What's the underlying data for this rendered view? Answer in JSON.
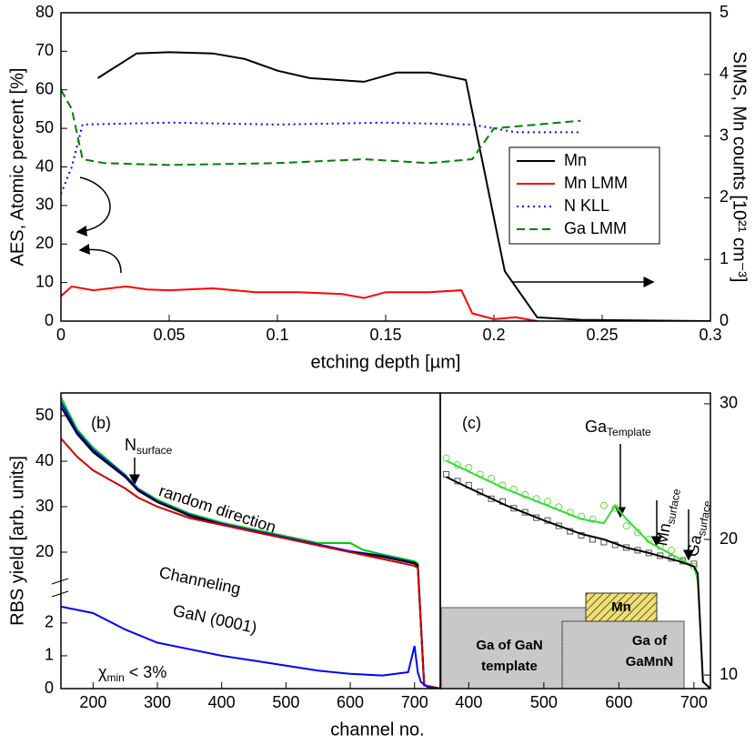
{
  "chart_data": [
    {
      "type": "line",
      "xlabel": "etching depth [µm]",
      "ylabel": "AES, Atomic percent [%]",
      "y2label": "SIMS, Mn counts [10²¹ cm⁻³]",
      "xlim": [
        0,
        0.3
      ],
      "xticks": [
        0,
        0.05,
        0.1,
        0.15,
        0.2,
        0.25,
        0.3
      ],
      "ylim": [
        0,
        80
      ],
      "yticks": [
        0,
        10,
        20,
        30,
        40,
        50,
        60,
        70,
        80
      ],
      "y2lim": [
        0,
        5
      ],
      "y2ticks": [
        0,
        1,
        2,
        3,
        4,
        5
      ],
      "legend": "right",
      "series": [
        {
          "name": "Mn",
          "color": "#000000",
          "dash": "solid",
          "axis": "y2",
          "x": [
            0.017,
            0.035,
            0.05,
            0.07,
            0.085,
            0.1,
            0.115,
            0.14,
            0.155,
            0.17,
            0.187,
            0.205,
            0.22,
            0.24,
            0.3
          ],
          "values": [
            3.94,
            4.34,
            4.36,
            4.34,
            4.25,
            4.06,
            3.94,
            3.88,
            4.03,
            4.03,
            3.91,
            0.81,
            0.06,
            0.02,
            0
          ]
        },
        {
          "name": "Mn LMM",
          "color": "#ff0000",
          "dash": "solid",
          "x": [
            0,
            0.005,
            0.015,
            0.03,
            0.04,
            0.05,
            0.07,
            0.09,
            0.11,
            0.13,
            0.14,
            0.15,
            0.17,
            0.185,
            0.19,
            0.2,
            0.21,
            0.22
          ],
          "values": [
            6.5,
            9,
            8,
            9,
            8.2,
            8,
            8.5,
            7.5,
            7.5,
            7,
            6,
            7.5,
            7.5,
            8,
            2,
            0.5,
            1,
            0
          ]
        },
        {
          "name": "N KLL",
          "color": "#0000ff",
          "dash": "dotted",
          "x": [
            0,
            0.005,
            0.01,
            0.05,
            0.1,
            0.15,
            0.19,
            0.2,
            0.21,
            0.24
          ],
          "values": [
            33,
            40,
            51,
            51.5,
            51,
            51.5,
            51,
            50,
            49,
            49
          ]
        },
        {
          "name": "Ga LMM",
          "color": "#008000",
          "dash": "dashed",
          "x": [
            0,
            0.005,
            0.01,
            0.02,
            0.05,
            0.1,
            0.14,
            0.17,
            0.19,
            0.2,
            0.22,
            0.24
          ],
          "values": [
            60,
            55,
            42,
            41,
            40.5,
            41,
            42,
            41,
            42,
            50,
            51,
            52
          ]
        }
      ]
    },
    {
      "type": "line",
      "xlabel": "channel no.",
      "ylabel": "RBS yield [arb. units]",
      "xlim": [
        150,
        740
      ],
      "xticks": [
        200,
        300,
        400,
        500,
        600,
        700
      ],
      "ylim_lower": [
        0,
        2.8
      ],
      "ylim_upper": [
        14,
        55
      ],
      "yticks": [
        0,
        1,
        2,
        20,
        30,
        40,
        50
      ],
      "annotations": [
        "(b)",
        {
          "text": "N",
          "sub": "surface"
        },
        "random direction",
        "Channeling",
        "GaN (0001)",
        {
          "text": "χ",
          "sub": "min",
          "rest": " < 3%"
        }
      ],
      "series": [
        {
          "color": "#00cc00",
          "x": [
            150,
            175,
            200,
            250,
            270,
            300,
            350,
            400,
            450,
            500,
            550,
            600,
            620,
            650,
            700,
            705,
            715,
            740
          ],
          "values": [
            54,
            47,
            43,
            37,
            34,
            31.5,
            28.5,
            26.5,
            25,
            23.5,
            22,
            22,
            20.5,
            19.5,
            18,
            17.5,
            0.1,
            0
          ]
        },
        {
          "color": "#0000ff",
          "x": [
            150,
            175,
            200,
            250,
            270,
            300,
            350,
            400,
            450,
            500,
            550,
            600,
            650,
            700,
            705,
            715,
            740
          ],
          "values": [
            53,
            46.5,
            42.5,
            36.8,
            33.8,
            31.2,
            28.2,
            26.2,
            24.7,
            23.2,
            21.7,
            20.2,
            19.2,
            17.7,
            17.2,
            0.1,
            0
          ]
        },
        {
          "color": "#000000",
          "x": [
            150,
            175,
            200,
            250,
            270,
            300,
            350,
            400,
            450,
            500,
            550,
            600,
            650,
            700,
            705,
            715,
            740
          ],
          "values": [
            52,
            46,
            42,
            36.5,
            33.5,
            31,
            28,
            26,
            24.5,
            23,
            21.5,
            20,
            19,
            17.5,
            17,
            0.1,
            0
          ]
        },
        {
          "color": "#cc0000",
          "x": [
            150,
            175,
            200,
            250,
            270,
            300,
            350,
            400,
            450,
            500,
            550,
            600,
            650,
            700,
            705,
            715,
            740
          ],
          "values": [
            45,
            41,
            38,
            34,
            32,
            30,
            27.5,
            26,
            24.5,
            23,
            21.5,
            20,
            18.5,
            17,
            16.5,
            0.1,
            0
          ]
        },
        {
          "color": "#0000ff",
          "x": [
            150,
            200,
            250,
            300,
            350,
            400,
            450,
            500,
            550,
            600,
            650,
            690,
            700,
            705,
            710,
            720,
            740
          ],
          "values": [
            2.5,
            2.3,
            1.8,
            1.4,
            1.2,
            1,
            0.85,
            0.7,
            0.55,
            0.45,
            0.4,
            0.5,
            1.3,
            0.5,
            0.2,
            0.05,
            0
          ]
        }
      ]
    },
    {
      "type": "line",
      "xlim": [
        362,
        722
      ],
      "xticks": [
        400,
        500,
        600,
        700
      ],
      "ylim": [
        9,
        30.8
      ],
      "yticks": [
        10,
        20,
        30
      ],
      "yaxis": "right",
      "annotations": [
        "(c)",
        {
          "text": "Ga",
          "sub": "Template"
        },
        {
          "text": "Mn",
          "sub": "surface"
        },
        {
          "text": "Ga",
          "sub": "surface"
        },
        "Mn",
        "Ga of GaN",
        "template",
        "Ga of",
        "GaMnN"
      ],
      "series": [
        {
          "color": "#66dd44",
          "style": "circles",
          "x": [
            370,
            385,
            400,
            415,
            430,
            445,
            460,
            475,
            490,
            505,
            520,
            535,
            550,
            565,
            580,
            595,
            610,
            625,
            640,
            655,
            670,
            685,
            700
          ],
          "values": [
            26,
            25.5,
            25.3,
            24.8,
            24.5,
            24,
            23.7,
            23.3,
            23,
            22.8,
            22.4,
            22,
            21.7,
            21.5,
            22.5,
            22.3,
            21,
            20.5,
            20,
            19.5,
            19.2,
            18.5,
            18
          ]
        },
        {
          "color": "#555555",
          "style": "squares",
          "x": [
            370,
            385,
            400,
            415,
            430,
            445,
            460,
            475,
            490,
            505,
            520,
            535,
            550,
            565,
            580,
            595,
            610,
            625,
            640,
            655,
            670,
            685,
            700
          ],
          "values": [
            24.8,
            24.3,
            24,
            23.5,
            23,
            22.8,
            22.3,
            22,
            21.6,
            21.4,
            21,
            20.6,
            20.3,
            20,
            19.8,
            19.6,
            19.4,
            19.2,
            19,
            18.8,
            18.6,
            18.4,
            18.2
          ]
        },
        {
          "color": "#33dd33",
          "x": [
            370,
            400,
            450,
            500,
            550,
            580,
            595,
            610,
            640,
            680,
            700,
            705,
            708,
            712,
            722
          ],
          "values": [
            25.8,
            25,
            23.7,
            22.6,
            21.5,
            21.2,
            22.5,
            21.5,
            19.8,
            18.6,
            18,
            17,
            14,
            9.5,
            9
          ]
        },
        {
          "color": "#000000",
          "x": [
            370,
            400,
            450,
            500,
            550,
            580,
            595,
            610,
            640,
            680,
            700,
            705,
            708,
            712,
            722
          ],
          "values": [
            24.6,
            23.8,
            22.5,
            21.4,
            20.4,
            20,
            19.7,
            19.4,
            19,
            18.4,
            18,
            17.5,
            14,
            9.5,
            9
          ]
        }
      ]
    }
  ]
}
